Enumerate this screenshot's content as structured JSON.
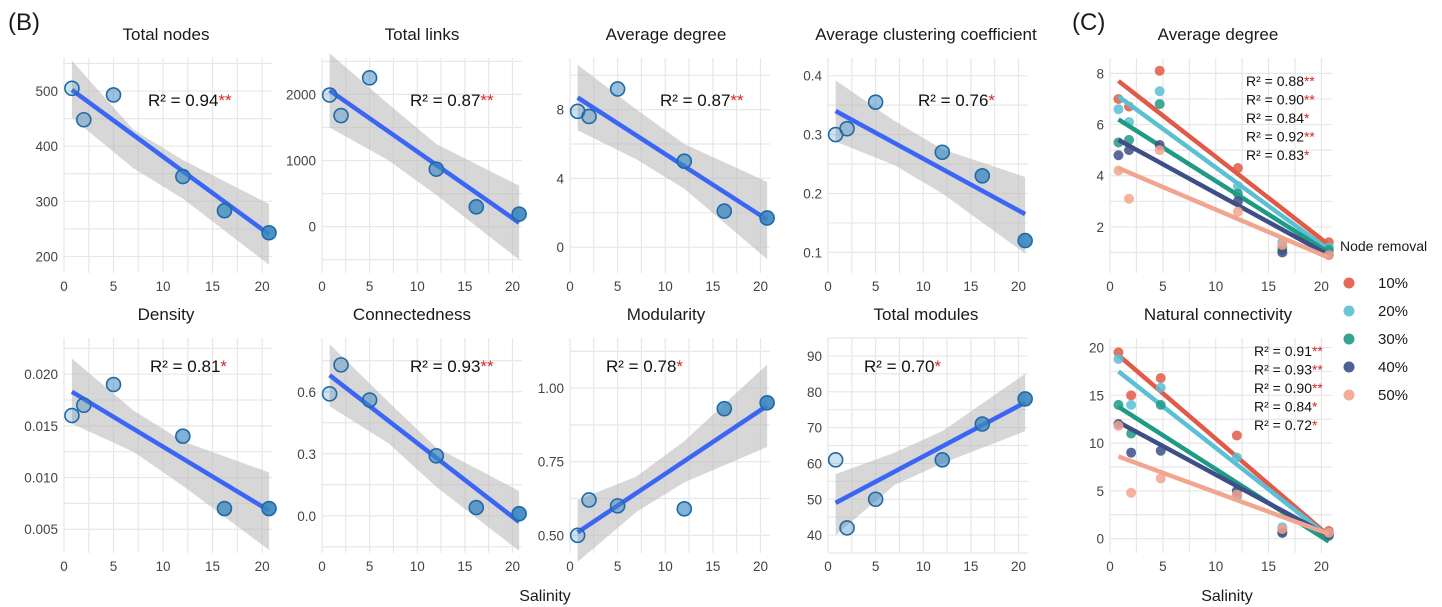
{
  "labels": {
    "panel_b": "(B)",
    "panel_c": "(C)",
    "xlabel_b": "Salinity",
    "xlabel_c": "Salinity",
    "legend_title": "Node removal"
  },
  "colors": {
    "fit_line": "#3b66f5",
    "ribbon": "#bdbdbd",
    "point_fill": "#3a86c0",
    "point_edge": "#1f6aa6",
    "grid": "#e7e7e7",
    "sig_stars": "#d62728",
    "removal": [
      "#e05a47",
      "#5bc0d6",
      "#1f9a85",
      "#3e4f88",
      "#f2a58e"
    ]
  },
  "chart_data": [
    {
      "type": "scatter",
      "title": "Total nodes",
      "xlim": [
        0,
        21
      ],
      "ylim": [
        170,
        560
      ],
      "xticks": [
        "0",
        "5",
        "10",
        "15",
        "20"
      ],
      "yticks": [
        "200",
        "300",
        "400",
        "500"
      ],
      "x": [
        0.8,
        2,
        5,
        12,
        16.2,
        20.7
      ],
      "y": [
        505,
        448,
        493,
        345,
        283,
        243
      ],
      "fit": [
        [
          0.8,
          502
        ],
        [
          20.7,
          240
        ]
      ],
      "band": [
        [
          0.8,
          555,
          452
        ],
        [
          7,
          430,
          360
        ],
        [
          12,
          375,
          305
        ],
        [
          20.7,
          295,
          185
        ]
      ],
      "r2": "R² = 0.94",
      "stars": "**",
      "grid": true
    },
    {
      "type": "scatter",
      "title": "Total links",
      "xlim": [
        0,
        21
      ],
      "ylim": [
        -700,
        2550
      ],
      "xticks": [
        "0",
        "5",
        "10",
        "15",
        "20"
      ],
      "yticks": [
        "0",
        "1000",
        "2000"
      ],
      "x": [
        0.8,
        2,
        5,
        12,
        16.2,
        20.7
      ],
      "y": [
        1990,
        1680,
        2250,
        870,
        300,
        190
      ],
      "fit": [
        [
          0.8,
          2060
        ],
        [
          20.7,
          60
        ]
      ],
      "band": [
        [
          0.8,
          2620,
          1500
        ],
        [
          7,
          1850,
          1000
        ],
        [
          12,
          1250,
          480
        ],
        [
          20.7,
          620,
          -500
        ]
      ],
      "r2": "R² = 0.87",
      "stars": "**",
      "grid": true
    },
    {
      "type": "scatter",
      "title": "Average degree",
      "xlim": [
        0,
        21
      ],
      "ylim": [
        -1.5,
        11
      ],
      "xticks": [
        "0",
        "5",
        "10",
        "15",
        "20"
      ],
      "yticks": [
        "0",
        "4",
        "8"
      ],
      "x": [
        0.8,
        2,
        5,
        12,
        16.2,
        20.7
      ],
      "y": [
        7.9,
        7.6,
        9.2,
        5.0,
        2.1,
        1.7
      ],
      "fit": [
        [
          0.8,
          8.7
        ],
        [
          20.7,
          1.6
        ]
      ],
      "band": [
        [
          0.8,
          10.6,
          6.8
        ],
        [
          7,
          8.0,
          5.1
        ],
        [
          12,
          6.0,
          3.4
        ],
        [
          20.7,
          3.8,
          -0.7
        ]
      ],
      "r2": "R² = 0.87",
      "stars": "**",
      "grid": true
    },
    {
      "type": "scatter",
      "title": "Average clustering coefficient",
      "xlim": [
        0,
        21
      ],
      "ylim": [
        0.065,
        0.43
      ],
      "xticks": [
        "0",
        "5",
        "10",
        "15",
        "20"
      ],
      "yticks": [
        "0.1",
        "0.2",
        "0.3",
        "0.4"
      ],
      "x": [
        0.8,
        2,
        5,
        12,
        16.2,
        20.7
      ],
      "y": [
        0.3,
        0.31,
        0.355,
        0.27,
        0.23,
        0.12
      ],
      "fit": [
        [
          0.8,
          0.34
        ],
        [
          20.7,
          0.165
        ]
      ],
      "band": [
        [
          0.8,
          0.392,
          0.288
        ],
        [
          7,
          0.323,
          0.248
        ],
        [
          12,
          0.275,
          0.2
        ],
        [
          20.7,
          0.228,
          0.098
        ]
      ],
      "r2": "R² = 0.76",
      "stars": "*",
      "grid": true
    },
    {
      "type": "scatter",
      "title": "Density",
      "xlim": [
        0,
        21
      ],
      "ylim": [
        0.0027,
        0.0235
      ],
      "xticks": [
        "0",
        "5",
        "10",
        "15",
        "20"
      ],
      "yticks": [
        "0.005",
        "0.010",
        "0.015",
        "0.020"
      ],
      "x": [
        0.8,
        2,
        5,
        12,
        16.2,
        20.7
      ],
      "y": [
        0.016,
        0.017,
        0.019,
        0.014,
        0.007,
        0.007
      ],
      "fit": [
        [
          0.8,
          0.0183
        ],
        [
          20.7,
          0.0068
        ]
      ],
      "band": [
        [
          0.8,
          0.0215,
          0.0152
        ],
        [
          7,
          0.0165,
          0.0125
        ],
        [
          12,
          0.0135,
          0.0092
        ],
        [
          20.7,
          0.0105,
          0.003
        ]
      ],
      "r2": "R² = 0.81",
      "stars": "*",
      "grid": true
    },
    {
      "type": "scatter",
      "title": "Connectedness",
      "xlim": [
        0,
        21
      ],
      "ylim": [
        -0.18,
        0.86
      ],
      "xticks": [
        "0",
        "5",
        "10",
        "15",
        "20"
      ],
      "yticks": [
        "0.0",
        "0.3",
        "0.6"
      ],
      "x": [
        0.8,
        2,
        5,
        12,
        16.2,
        20.7
      ],
      "y": [
        0.59,
        0.73,
        0.56,
        0.29,
        0.04,
        0.01
      ],
      "fit": [
        [
          0.8,
          0.68
        ],
        [
          20.7,
          -0.03
        ]
      ],
      "band": [
        [
          0.8,
          0.83,
          0.53
        ],
        [
          7,
          0.55,
          0.35
        ],
        [
          12,
          0.33,
          0.14
        ],
        [
          20.7,
          0.12,
          -0.17
        ]
      ],
      "r2": "R² = 0.93",
      "stars": "**",
      "grid": true
    },
    {
      "type": "scatter",
      "title": "Modularity",
      "xlim": [
        0,
        21
      ],
      "ylim": [
        0.44,
        1.17
      ],
      "xticks": [
        "0",
        "5",
        "10",
        "15",
        "20"
      ],
      "yticks": [
        "0.50",
        "0.75",
        "1.00"
      ],
      "x": [
        0.8,
        2,
        5,
        12,
        16.2,
        20.7
      ],
      "y": [
        0.5,
        0.62,
        0.6,
        0.59,
        0.93,
        0.95
      ],
      "fit": [
        [
          0.8,
          0.51
        ],
        [
          20.7,
          0.94
        ]
      ],
      "band": [
        [
          0.8,
          0.62,
          0.41
        ],
        [
          7,
          0.7,
          0.58
        ],
        [
          12,
          0.82,
          0.68
        ],
        [
          20.7,
          1.08,
          0.8
        ]
      ],
      "r2": "R² = 0.78",
      "stars": "*",
      "grid": true
    },
    {
      "type": "scatter",
      "title": "Total modules",
      "xlim": [
        0,
        21
      ],
      "ylim": [
        35,
        95
      ],
      "xticks": [
        "0",
        "5",
        "10",
        "15",
        "20"
      ],
      "yticks": [
        "40",
        "50",
        "60",
        "70",
        "80",
        "90"
      ],
      "x": [
        0.8,
        2,
        5,
        12,
        16.2,
        20.7
      ],
      "y": [
        61,
        42,
        50,
        61,
        71,
        78
      ],
      "fit": [
        [
          0.8,
          49
        ],
        [
          20.7,
          77
        ]
      ],
      "band": [
        [
          0.8,
          57,
          40
        ],
        [
          7,
          63,
          54
        ],
        [
          12,
          69,
          60
        ],
        [
          20.7,
          85,
          69
        ]
      ],
      "r2": "R² = 0.70",
      "stars": "*",
      "grid": true
    },
    {
      "type": "scatter",
      "title": "Average degree",
      "xlim": [
        0,
        21
      ],
      "ylim": [
        0.2,
        8.6
      ],
      "xticks": [
        "0",
        "5",
        "10",
        "15",
        "20"
      ],
      "yticks": [
        "2",
        "4",
        "6",
        "8"
      ],
      "x": [
        0.8,
        1.8,
        4.7,
        12.1,
        16.3,
        20.7
      ],
      "series": [
        {
          "name": "10%",
          "y": [
            7.0,
            6.7,
            8.1,
            4.3,
            1.2,
            1.4
          ],
          "fit": [
            [
              0.8,
              7.7
            ],
            [
              20.7,
              1.3
            ]
          ],
          "r2": "R² = 0.88",
          "stars": "**"
        },
        {
          "name": "20%",
          "y": [
            6.6,
            6.1,
            7.3,
            3.6,
            1.4,
            1.2
          ],
          "fit": [
            [
              0.8,
              7.1
            ],
            [
              20.7,
              1.1
            ]
          ],
          "r2": "R² = 0.90",
          "stars": "**"
        },
        {
          "name": "30%",
          "y": [
            5.3,
            5.4,
            6.8,
            3.3,
            1.1,
            1.1
          ],
          "fit": [
            [
              0.8,
              6.2
            ],
            [
              20.7,
              1.0
            ]
          ],
          "r2": "R² = 0.84",
          "stars": "*"
        },
        {
          "name": "40%",
          "y": [
            4.8,
            5.0,
            5.2,
            3.0,
            1.0,
            0.9
          ],
          "fit": [
            [
              0.8,
              5.4
            ],
            [
              20.7,
              0.9
            ]
          ],
          "r2": "R² = 0.92",
          "stars": "**"
        },
        {
          "name": "50%",
          "y": [
            4.2,
            3.1,
            5.0,
            2.6,
            1.3,
            0.9
          ],
          "fit": [
            [
              0.8,
              4.3
            ],
            [
              20.7,
              0.8
            ]
          ],
          "r2": "R² = 0.83",
          "stars": "*"
        }
      ],
      "grid": true
    },
    {
      "type": "scatter",
      "title": "Natural connectivity",
      "xlim": [
        0,
        21
      ],
      "ylim": [
        -1.5,
        21
      ],
      "xticks": [
        "0",
        "5",
        "10",
        "15",
        "20"
      ],
      "yticks": [
        "0",
        "5",
        "10",
        "15",
        "20"
      ],
      "x": [
        0.8,
        2.0,
        4.8,
        12.0,
        16.3,
        20.7
      ],
      "series": [
        {
          "name": "10%",
          "y": [
            19.5,
            15.0,
            16.8,
            10.8,
            1.0,
            0.8
          ],
          "fit": [
            [
              0.8,
              19.2
            ],
            [
              20.7,
              0.3
            ]
          ],
          "r2": "R² = 0.91",
          "stars": "**"
        },
        {
          "name": "20%",
          "y": [
            18.8,
            14.0,
            15.8,
            8.5,
            1.2,
            0.5
          ],
          "fit": [
            [
              0.8,
              17.5
            ],
            [
              20.7,
              0.2
            ]
          ],
          "r2": "R² = 0.93",
          "stars": "**"
        },
        {
          "name": "30%",
          "y": [
            14.0,
            11.0,
            14.0,
            4.5,
            0.7,
            0.3
          ],
          "fit": [
            [
              0.8,
              13.8
            ],
            [
              20.7,
              -0.3
            ]
          ],
          "r2": "R² = 0.90",
          "stars": "**"
        },
        {
          "name": "40%",
          "y": [
            12.0,
            9.0,
            9.2,
            5.0,
            0.6,
            0.4
          ],
          "fit": [
            [
              0.8,
              12.2
            ],
            [
              20.7,
              0.3
            ]
          ],
          "r2": "R² = 0.84",
          "stars": "*"
        },
        {
          "name": "50%",
          "y": [
            11.8,
            4.8,
            6.3,
            4.6,
            1.0,
            0.6
          ],
          "fit": [
            [
              0.8,
              8.6
            ],
            [
              20.7,
              0.5
            ]
          ],
          "r2": "R² = 0.72",
          "stars": "*"
        }
      ],
      "grid": true
    }
  ]
}
